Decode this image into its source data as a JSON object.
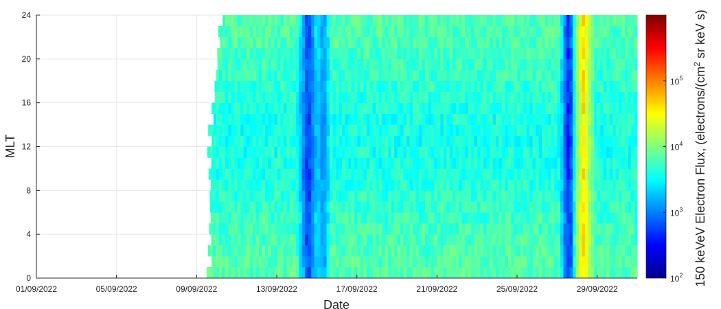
{
  "chart_data": {
    "type": "heatmap",
    "title": "",
    "xlabel": "Date",
    "ylabel": "MLT",
    "x_range": [
      "2022-09-01",
      "2022-10-01"
    ],
    "x_ticks": [
      "01/09/2022",
      "05/09/2022",
      "09/09/2022",
      "13/09/2022",
      "17/09/2022",
      "21/09/2022",
      "25/09/2022",
      "29/09/2022"
    ],
    "ylim": [
      0,
      24
    ],
    "y_ticks": [
      "0",
      "4",
      "8",
      "12",
      "16",
      "20",
      "24"
    ],
    "data_start": "2022-09-09T12:00",
    "mlt_bin_hours": 1,
    "colormap": "jet",
    "colorbar": {
      "label": "150 keVeV Electron Flux, (electrons/(cm",
      "label_sup": "2",
      "label_end": " sr keV s)",
      "scale": "log",
      "range": [
        100,
        1000000
      ],
      "ticks": [
        {
          "value": 100,
          "base": "10",
          "exp": "2"
        },
        {
          "value": 1000,
          "base": "10",
          "exp": "3"
        },
        {
          "value": 10000,
          "base": "10",
          "exp": "4"
        },
        {
          "value": 100000,
          "base": "10",
          "exp": "5"
        }
      ]
    },
    "flux_background": 5000,
    "flux_features": [
      {
        "date": "2022-09-14T12:00",
        "width_days": 0.6,
        "flux": 300,
        "description": "dropout"
      },
      {
        "date": "2022-09-15T06:00",
        "width_days": 0.4,
        "flux": 800,
        "description": "recovery"
      },
      {
        "date": "2022-09-27T12:00",
        "width_days": 0.5,
        "flux": 250,
        "description": "dropout"
      },
      {
        "date": "2022-09-28T06:00",
        "width_days": 0.6,
        "flux": 60000,
        "description": "enhancement"
      }
    ],
    "grid": true,
    "legend": "none"
  }
}
